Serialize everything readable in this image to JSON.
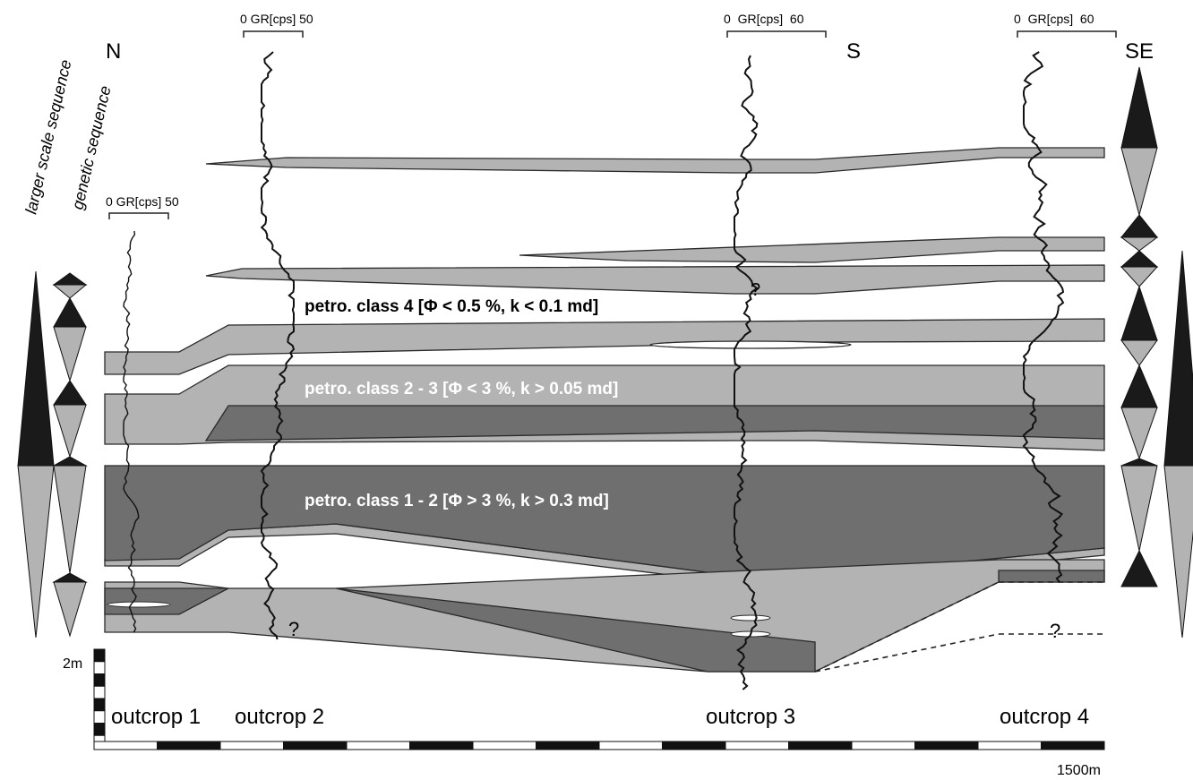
{
  "compass": [
    "N",
    "S",
    "SE"
  ],
  "gr_scales": [
    "0 GR[cps] 50",
    "0 GR[cps] 50",
    "0  GR[cps]  60",
    "0  GR[cps]  60"
  ],
  "sequence_labels": [
    "larger scale sequence",
    "genetic sequence"
  ],
  "petro_classes": [
    "petro. class 4 [Φ < 0.5 %, k < 0.1 md]",
    "petro. class 2 - 3 [Φ < 3 %, k > 0.05 md]",
    "petro. class 1 - 2 [Φ > 3 %, k > 0.3 md]"
  ],
  "outcrops": [
    "outcrop 1",
    "outcrop 2",
    "outcrop 3",
    "outcrop 4"
  ],
  "scale_bar": {
    "vertical": "2m",
    "horizontal": "1500m"
  },
  "uncertain_marks": [
    "?",
    "?",
    "?"
  ]
}
